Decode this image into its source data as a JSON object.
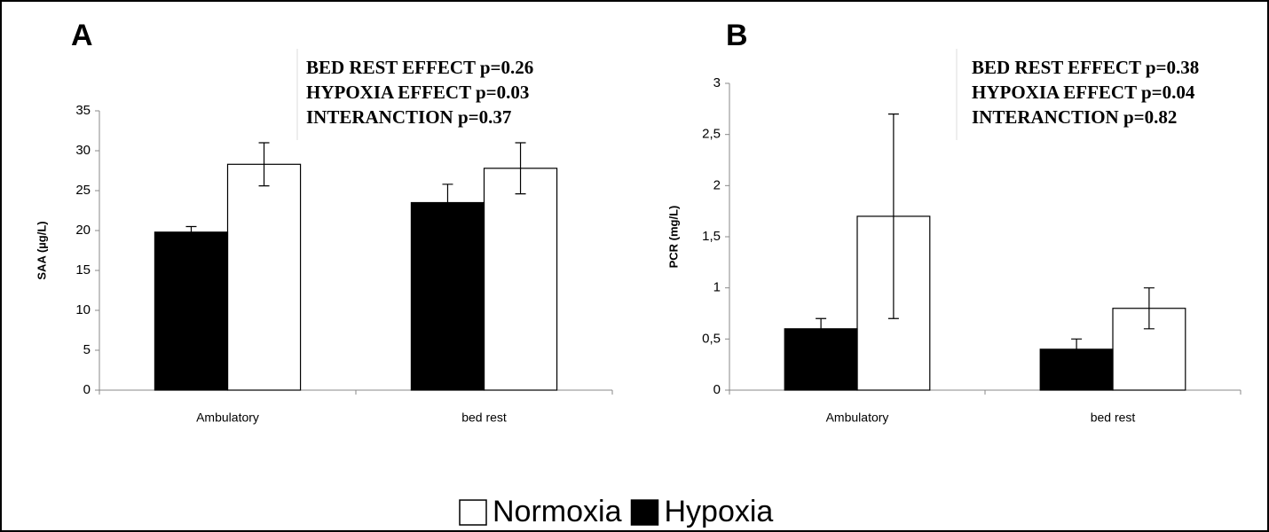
{
  "chart_data": [
    {
      "type": "bar",
      "title": "A",
      "ylabel": "SAA (µg/L)",
      "annotations": [
        "BED REST EFFECT p=0.26",
        "HYPOXIA EFFECT p=0.03",
        "INTERANCTION p=0.37"
      ],
      "categories": [
        "Ambulatory",
        "bed rest"
      ],
      "series": [
        {
          "name": "Normoxia",
          "color": "#ffffff",
          "values": [
            28.3,
            27.8
          ],
          "errors": [
            2.7,
            3.2
          ]
        },
        {
          "name": "Hypoxia",
          "color": "#000000",
          "values": [
            19.8,
            23.5
          ],
          "errors": [
            0.7,
            2.3
          ]
        }
      ],
      "ylim": [
        0,
        35
      ],
      "yticks": [
        0,
        5,
        10,
        15,
        20,
        25,
        30,
        35
      ]
    },
    {
      "type": "bar",
      "title": "B",
      "ylabel": "PCR (mg/L)",
      "annotations": [
        "BED REST EFFECT p=0.38",
        "HYPOXIA EFFECT p=0.04",
        "INTERANCTION p=0.82"
      ],
      "categories": [
        "Ambulatory",
        "bed rest"
      ],
      "series": [
        {
          "color": "#ffffff",
          "values": [
            1.7,
            0.8
          ],
          "errors": [
            1.0,
            0.2
          ]
        },
        {
          "color": "#000000",
          "values": [
            0.6,
            0.4
          ],
          "errors": [
            0.1,
            0.1
          ]
        }
      ],
      "ylim": [
        0,
        3
      ],
      "yticks": [
        0,
        {
          "value": 0.5,
          "label": "0,5"
        },
        1,
        {
          "value": 1.5,
          "label": "1,5"
        },
        2,
        {
          "value": 2.5,
          "label": "2,5"
        },
        3
      ]
    }
  ]
}
